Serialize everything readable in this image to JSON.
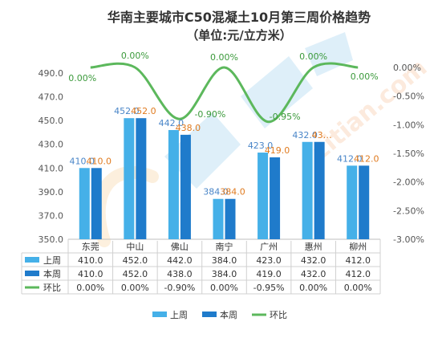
{
  "chart_data": {
    "type": "bar",
    "title": "华南主要城市C50混凝土10月第三周价格趋势",
    "subtitle": "（单位:元/立方米）",
    "categories": [
      "东莞",
      "中山",
      "佛山",
      "南宁",
      "广州",
      "惠州",
      "柳州"
    ],
    "series": [
      {
        "name": "上周",
        "type": "bar",
        "axis": "left",
        "color": "#45B0E8",
        "values": [
          410.0,
          452.0,
          442.0,
          384.0,
          423.0,
          432.0,
          412.0
        ],
        "labels": [
          "410.0",
          "452.0",
          "442.0",
          "384.0",
          "423.0",
          "432.0",
          "412.0"
        ]
      },
      {
        "name": "本周",
        "type": "bar",
        "axis": "left",
        "color": "#1F7BCB",
        "values": [
          410.0,
          452.0,
          438.0,
          384.0,
          419.0,
          432.0,
          412.0
        ],
        "labels": [
          "410.0",
          "452.0",
          "438.0",
          "384.0",
          "419.0",
          "43…",
          "412.0"
        ]
      },
      {
        "name": "环比",
        "type": "line",
        "axis": "right",
        "color": "#5CB85C",
        "values": [
          0.0,
          0.0,
          -0.9,
          0.0,
          -0.95,
          0.0,
          0.0
        ],
        "labels": [
          "0.00%",
          "0.00%",
          "-0.90%",
          "0.00%",
          "-0.95%",
          "0.00%",
          "0.00%"
        ]
      }
    ],
    "y_left": {
      "min": 350,
      "max": 490,
      "ticks": [
        "350.0",
        "370.0",
        "390.0",
        "410.0",
        "430.0",
        "450.0",
        "470.0",
        "490.0"
      ]
    },
    "y_right": {
      "min": -3.0,
      "max": 0.0,
      "ticks": [
        "0.00%",
        "-0.50%",
        "-1.00%",
        "-1.50%",
        "-2.00%",
        "-2.50%",
        "-3.00%"
      ]
    },
    "data_table": {
      "rows": [
        {
          "name": "上周",
          "cells": [
            "410.0",
            "452.0",
            "442.0",
            "384.0",
            "423.0",
            "432.0",
            "412.0"
          ]
        },
        {
          "name": "本周",
          "cells": [
            "410.0",
            "452.0",
            "438.0",
            "384.0",
            "419.0",
            "432.0",
            "412.0"
          ]
        },
        {
          "name": "环比",
          "cells": [
            "0.00%",
            "0.00%",
            "-0.90%",
            "0.00%",
            "-0.95%",
            "0.00%",
            "0.00%"
          ]
        }
      ]
    },
    "legend": {
      "placement": "bottom",
      "items": [
        "上周",
        "本周",
        "环比"
      ]
    },
    "grid": false,
    "watermark": "zitian.com 指尖网"
  }
}
